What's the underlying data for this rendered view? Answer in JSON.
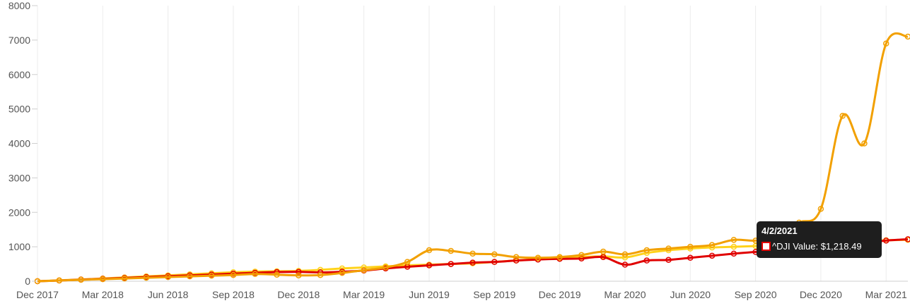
{
  "chart_data": {
    "type": "line",
    "y_axis": {
      "ticks": [
        "0",
        "1000",
        "2000",
        "3000",
        "4000",
        "5000",
        "6000",
        "7000",
        "8000"
      ],
      "ylim": [
        0,
        8000
      ]
    },
    "x_axis": {
      "ticks": [
        "Dec 2017",
        "Mar 2018",
        "Jun 2018",
        "Sep 2018",
        "Dec 2018",
        "Mar 2019",
        "Jun 2019",
        "Sep 2019",
        "Dec 2019",
        "Mar 2020",
        "Jun 2020",
        "Sep 2020",
        "Dec 2020",
        "Mar 2021"
      ]
    },
    "grid": {
      "vertical": true,
      "horizontal": false
    },
    "x": [
      "2017-12",
      "2018-01",
      "2018-02",
      "2018-03",
      "2018-04",
      "2018-05",
      "2018-06",
      "2018-07",
      "2018-08",
      "2018-09",
      "2018-10",
      "2018-11",
      "2018-12",
      "2019-01",
      "2019-02",
      "2019-03",
      "2019-04",
      "2019-05",
      "2019-06",
      "2019-07",
      "2019-08",
      "2019-09",
      "2019-10",
      "2019-11",
      "2019-12",
      "2020-01",
      "2020-02",
      "2020-03",
      "2020-04",
      "2020-05",
      "2020-06",
      "2020-07",
      "2020-08",
      "2020-09",
      "2020-10",
      "2020-11",
      "2020-12",
      "2021-01",
      "2021-02",
      "2021-03",
      "2021-04"
    ],
    "series": [
      {
        "name": "^DJI",
        "color": "#e00000",
        "values": [
          0,
          20,
          45,
          70,
          95,
          120,
          145,
          170,
          195,
          220,
          245,
          265,
          270,
          255,
          275,
          310,
          370,
          420,
          460,
          500,
          540,
          560,
          600,
          630,
          650,
          660,
          700,
          480,
          600,
          620,
          680,
          740,
          800,
          850,
          870,
          920,
          980,
          1050,
          1120,
          1180,
          1218.49
        ]
      },
      {
        "name": "",
        "color": "#f2a000",
        "values": [
          0,
          20,
          40,
          60,
          80,
          100,
          120,
          140,
          160,
          180,
          210,
          190,
          170,
          180,
          240,
          320,
          400,
          560,
          900,
          880,
          800,
          780,
          700,
          680,
          700,
          760,
          860,
          780,
          900,
          950,
          1000,
          1050,
          1200,
          1180,
          1300,
          1700,
          2100,
          4800,
          4000,
          6900,
          7100
        ]
      },
      {
        "name": "",
        "color": "#ffd21a",
        "values": [
          0,
          25,
          50,
          80,
          110,
          140,
          170,
          200,
          230,
          260,
          280,
          290,
          300,
          330,
          370,
          400,
          430,
          460,
          480,
          500,
          520,
          560,
          600,
          640,
          670,
          700,
          720,
          690,
          820,
          900,
          950,
          980,
          1000,
          1020,
          1050,
          1080,
          1110,
          1130,
          1160,
          1190,
          1200
        ]
      }
    ]
  },
  "tooltip": {
    "date": "4/2/2021",
    "text": "^DJI Value: $1,218.49",
    "marker_color": "#e00000"
  }
}
